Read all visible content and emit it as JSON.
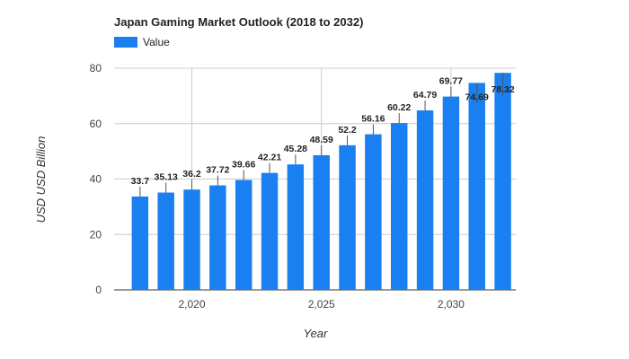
{
  "chart_data": {
    "type": "bar",
    "title": "Japan Gaming Market Outlook (2018 to 2032)",
    "xlabel": "Year",
    "ylabel": "USD USD Billion",
    "ylim": [
      0,
      80
    ],
    "xlim": [
      2017,
      2032.5
    ],
    "yticks": [
      0,
      20,
      40,
      60,
      80
    ],
    "xticks": [
      2020,
      2025,
      2030
    ],
    "xtick_labels": [
      "2,020",
      "2,025",
      "2,030"
    ],
    "grid": true,
    "legend_position": "top-left",
    "series": [
      {
        "name": "Value",
        "color": "#1a7ff0",
        "x": [
          2018,
          2019,
          2020,
          2021,
          2022,
          2023,
          2024,
          2025,
          2026,
          2027,
          2028,
          2029,
          2030,
          2031,
          2032
        ],
        "values": [
          33.7,
          35.13,
          36.2,
          37.72,
          39.66,
          42.21,
          45.28,
          48.59,
          52.2,
          56.16,
          60.22,
          64.79,
          69.77,
          74.69,
          78.32
        ]
      }
    ]
  }
}
